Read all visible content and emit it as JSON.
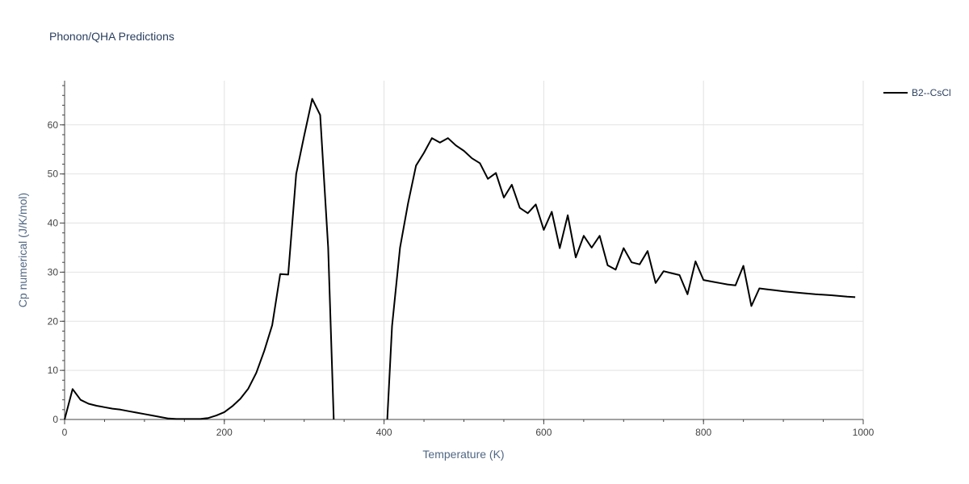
{
  "chart_data": {
    "type": "line",
    "title": "Phonon/QHA Predictions",
    "xlabel": "Temperature (K)",
    "ylabel": "Cp numerical (J/K/mol)",
    "xlim": [
      0,
      1000
    ],
    "ylim": [
      0,
      69
    ],
    "xticks": [
      0,
      200,
      400,
      600,
      800,
      1000
    ],
    "yticks": [
      0,
      10,
      20,
      30,
      40,
      50,
      60
    ],
    "grid": true,
    "legend_position": "top-right",
    "series": [
      {
        "name": "B2--CsCl",
        "color": "#000000",
        "segments": [
          {
            "x": [
              0,
              10,
              20,
              30,
              40,
              50,
              60,
              70,
              80,
              90,
              100,
              110,
              120,
              130,
              140,
              150,
              160,
              170,
              180,
              190,
              200,
              210,
              220,
              230,
              240,
              250,
              260,
              270,
              280,
              290,
              300,
              310,
              320,
              330,
              337
            ],
            "y": [
              0,
              6.2,
              4.0,
              3.2,
              2.8,
              2.5,
              2.2,
              2.0,
              1.7,
              1.4,
              1.1,
              0.8,
              0.5,
              0.2,
              0.1,
              0.1,
              0.1,
              0.1,
              0.3,
              0.8,
              1.5,
              2.7,
              4.2,
              6.3,
              9.5,
              14.0,
              19.2,
              29.6,
              29.5,
              50.0,
              57.8,
              65.3,
              62.0,
              35.0,
              0
            ]
          },
          {
            "x": [
              404,
              410,
              420,
              430,
              440,
              450,
              460,
              470,
              480,
              490,
              500,
              510,
              520,
              530,
              540,
              550,
              560,
              570,
              580,
              590,
              600,
              610,
              620,
              630,
              640,
              650,
              660,
              670,
              680,
              690,
              700,
              710,
              720,
              730,
              740,
              750,
              760,
              770,
              780,
              790,
              800,
              810,
              820,
              830,
              840,
              850,
              860,
              870,
              880,
              890,
              900,
              920,
              940,
              960,
              980,
              990
            ],
            "y": [
              0,
              19.0,
              35.0,
              44.0,
              51.7,
              54.3,
              57.3,
              56.4,
              57.3,
              55.8,
              54.7,
              53.2,
              52.2,
              49.0,
              50.2,
              45.2,
              47.8,
              43.1,
              42.0,
              43.8,
              38.6,
              42.3,
              34.9,
              41.6,
              33.0,
              37.4,
              35.0,
              37.4,
              31.4,
              30.5,
              34.9,
              32.0,
              31.6,
              34.3,
              27.8,
              30.2,
              29.8,
              29.4,
              25.5,
              32.2,
              28.4,
              28.1,
              27.8,
              27.5,
              27.3,
              31.3,
              23.1,
              26.7,
              26.5,
              26.3,
              26.1,
              25.8,
              25.5,
              25.3,
              25.0,
              24.9
            ]
          }
        ]
      }
    ]
  }
}
